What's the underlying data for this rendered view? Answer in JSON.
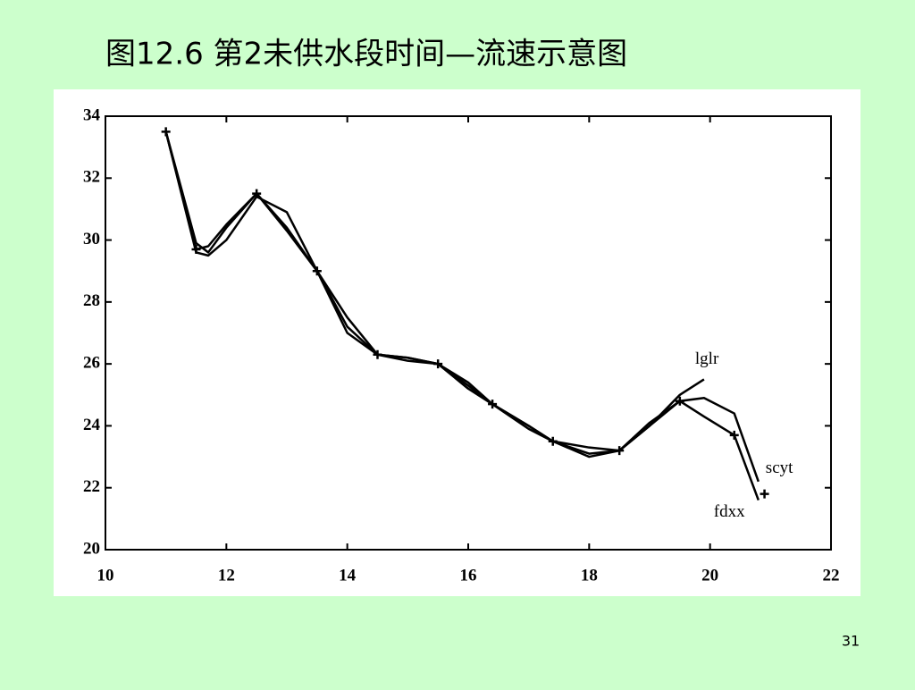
{
  "chart_data": {
    "type": "line",
    "title": "图12.6  第2未供水段时间—流速示意图",
    "x": [
      11,
      11.5,
      11.7,
      12,
      12.5,
      13,
      13.5,
      14,
      14.5,
      15,
      15.5,
      16,
      16.4,
      17,
      17.4,
      18,
      18.5,
      19,
      19.5,
      19.9,
      20.4,
      20.8
    ],
    "series": [
      {
        "name": "lglr",
        "color": "#000000",
        "values": [
          33.5,
          29.9,
          29.6,
          30.4,
          31.5,
          30.4,
          29.0,
          27.2,
          26.3,
          26.2,
          26.0,
          25.3,
          24.7,
          24.0,
          23.5,
          23.1,
          23.2,
          24.0,
          25.0,
          25.5,
          null,
          null
        ]
      },
      {
        "name": "scyt",
        "color": "#000000",
        "values": [
          33.5,
          29.6,
          29.5,
          30.0,
          31.4,
          30.9,
          29.0,
          27.0,
          26.3,
          26.1,
          26.0,
          25.2,
          24.7,
          23.9,
          23.5,
          23.0,
          23.2,
          24.0,
          24.8,
          24.9,
          24.4,
          22.2
        ]
      },
      {
        "name": "fdxx",
        "color": "#000000",
        "values": [
          33.5,
          29.7,
          29.8,
          30.5,
          31.5,
          30.3,
          29.0,
          27.5,
          26.3,
          26.2,
          26.0,
          25.4,
          24.7,
          24.0,
          23.5,
          23.3,
          23.2,
          24.1,
          24.8,
          24.3,
          23.7,
          21.6
        ]
      }
    ],
    "points": {
      "x": [
        11,
        11.5,
        12.5,
        13.5,
        14.5,
        15.5,
        16.4,
        17.4,
        18.5,
        19.5,
        20.4,
        20.9
      ],
      "y": [
        33.5,
        29.7,
        31.5,
        29.0,
        26.3,
        26.0,
        24.7,
        23.5,
        23.2,
        24.8,
        23.7,
        21.8
      ]
    },
    "xlim": [
      10,
      22
    ],
    "xticks": [
      10,
      12,
      14,
      16,
      18,
      20,
      22
    ],
    "ylim": [
      20,
      34
    ],
    "yticks": [
      20,
      22,
      24,
      26,
      28,
      30,
      32,
      34
    ]
  },
  "page_number": "31"
}
